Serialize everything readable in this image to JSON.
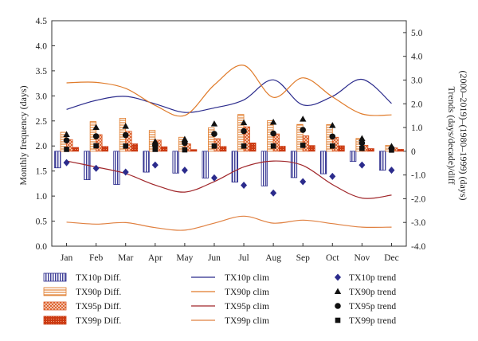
{
  "chart_data": {
    "type": "bar",
    "categories": [
      "Jan",
      "Feb",
      "Mar",
      "Apr",
      "May",
      "Jun",
      "Jul",
      "Aug",
      "Sep",
      "Oct",
      "Nov",
      "Dec"
    ],
    "left_axis": {
      "label": "Monthly frequency (days)",
      "range": [
        0,
        4.5
      ],
      "ticks": [
        "0.0",
        "0.5",
        "1.0",
        "1.5",
        "2.0",
        "2.5",
        "3.0",
        "3.5",
        "4.0",
        "4.5"
      ]
    },
    "right_axis": {
      "label_line1": "Trends (days/decade)/diff",
      "label_line2": "(2000–2019)–(1980–1999) (days)",
      "range": [
        -4.0,
        5.5
      ],
      "ticks": [
        "-4.0",
        "-3.0",
        "-2.0",
        "-1.0",
        "0",
        "1.0",
        "2.0",
        "3.0",
        "4.0",
        "5.0"
      ]
    },
    "grid": false,
    "bar_series": [
      {
        "name": "TX10p Diff.",
        "color": "#2b2b8c",
        "pattern": "vertical-lines",
        "values": [
          -0.7,
          -1.2,
          -1.4,
          -0.88,
          -0.92,
          -1.13,
          -1.3,
          -1.46,
          -1.11,
          -0.95,
          -0.43,
          -0.8
        ]
      },
      {
        "name": "TX90p Diff.",
        "color": "#e07b2a",
        "pattern": "horizontal-lines",
        "values": [
          0.8,
          1.25,
          1.39,
          0.88,
          0.59,
          0.99,
          1.55,
          1.29,
          1.13,
          1.12,
          0.54,
          0.25
        ]
      },
      {
        "name": "TX95p Diff.",
        "color": "#d9541e",
        "pattern": "crosshatch",
        "values": [
          0.49,
          0.7,
          0.84,
          0.47,
          0.31,
          0.53,
          1.03,
          0.73,
          0.65,
          0.59,
          0.25,
          0.14
        ]
      },
      {
        "name": "TX99p Diff.",
        "color": "#c93a12",
        "pattern": "dense",
        "values": [
          0.16,
          0.2,
          0.31,
          0.19,
          0.07,
          0.2,
          0.35,
          0.21,
          0.24,
          0.23,
          0.11,
          0.08
        ]
      }
    ],
    "line_series": [
      {
        "name": "TX10p clim",
        "color": "#2b2b8c",
        "values": [
          2.73,
          2.91,
          2.99,
          2.84,
          2.67,
          2.76,
          2.92,
          3.32,
          2.82,
          2.99,
          3.33,
          2.85
        ]
      },
      {
        "name": "TX90p clim",
        "color": "#e07b2a",
        "values": [
          3.26,
          3.27,
          3.15,
          2.81,
          2.61,
          3.22,
          3.61,
          2.97,
          3.36,
          2.98,
          2.64,
          2.62
        ]
      },
      {
        "name": "TX95p clim",
        "color": "#a0262a",
        "values": [
          1.7,
          1.58,
          1.45,
          1.22,
          1.08,
          1.29,
          1.58,
          1.7,
          1.61,
          1.23,
          0.96,
          1.02
        ]
      },
      {
        "name": "TX99p clim",
        "color": "#e08040",
        "values": [
          0.48,
          0.44,
          0.47,
          0.37,
          0.32,
          0.46,
          0.6,
          0.46,
          0.52,
          0.45,
          0.38,
          0.38
        ]
      }
    ],
    "trend_series": [
      {
        "name": "TX10p trend",
        "marker": "diamond",
        "color": "#2b2b8c",
        "values": [
          -0.48,
          -0.72,
          -0.88,
          -0.58,
          -0.8,
          -1.12,
          -1.43,
          -1.76,
          -1.28,
          -1.06,
          -0.58,
          -0.8
        ]
      },
      {
        "name": "TX90p trend",
        "marker": "triangle",
        "color": "#111111",
        "values": [
          0.7,
          1.0,
          1.05,
          0.4,
          0.5,
          1.15,
          1.2,
          1.22,
          1.35,
          1.08,
          0.53,
          0.2
        ]
      },
      {
        "name": "TX95p trend",
        "marker": "circle",
        "color": "#111111",
        "values": [
          0.46,
          0.63,
          0.68,
          0.25,
          0.35,
          0.73,
          0.85,
          0.75,
          0.9,
          0.62,
          0.35,
          0.12
        ]
      },
      {
        "name": "TX99p trend",
        "marker": "square",
        "color": "#111111",
        "values": [
          0.08,
          0.23,
          0.22,
          0.08,
          0.06,
          0.22,
          0.22,
          0.22,
          0.25,
          0.22,
          0.12,
          0.05
        ]
      }
    ],
    "legend": {
      "placement": "bottom",
      "columns": [
        [
          "TX10p Diff.",
          "TX90p Diff.",
          "TX95p Diff.",
          "TX99p Diff."
        ],
        [
          "TX10p clim",
          "TX90p clim",
          "TX95p clim",
          "TX99p clim"
        ],
        [
          "TX10p trend",
          "TX90p trend",
          "TX95p trend",
          "TX99p trend"
        ]
      ]
    }
  }
}
